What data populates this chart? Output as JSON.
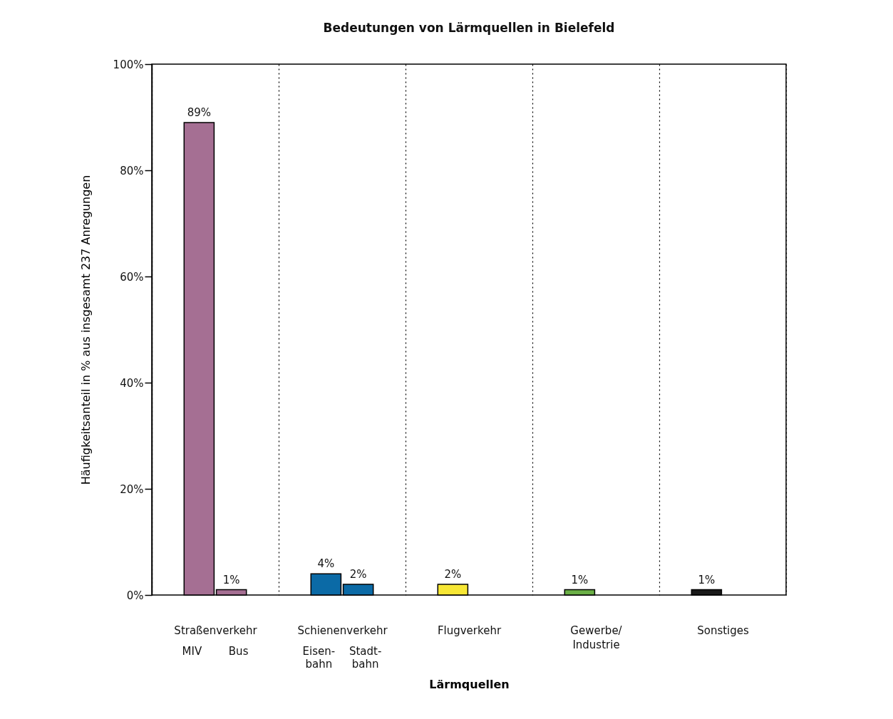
{
  "chart_data": {
    "type": "bar",
    "title": "Bedeutungen von Lärmquellen in Bielefeld",
    "xlabel": "Lärmquellen",
    "ylabel": "Häufigkeitsanteil in % aus insgesamt 237 Anregungen",
    "categories": [
      "Straßenverkehr",
      "Schienenverkehr",
      "Flugverkehr",
      "Gewerbe/\nIndustrie",
      "Sonstiges"
    ],
    "series": [
      {
        "values": [
          89,
          4,
          2,
          1,
          1
        ],
        "colors": [
          "#a56f93",
          "#0b6aa6",
          "#f7e735",
          "#6aaf46",
          "#1a1a1a"
        ],
        "value_labels": [
          "89%",
          "4%",
          "2%",
          "1%",
          "1%"
        ]
      },
      {
        "values": [
          1,
          2,
          null,
          null,
          null
        ],
        "colors": [
          "#a56f93",
          "#0b6aa6",
          null,
          null,
          null
        ],
        "value_labels": [
          "1%",
          "2%",
          null,
          null,
          null
        ]
      }
    ],
    "ylim": [
      0,
      100
    ],
    "yticks": [
      {
        "value": 0,
        "label": "0%"
      },
      {
        "value": 20,
        "label": "20%"
      },
      {
        "value": 40,
        "label": "40%"
      },
      {
        "value": 60,
        "label": "60%"
      },
      {
        "value": 80,
        "label": "80%"
      },
      {
        "value": 100,
        "label": "100%"
      }
    ],
    "grid": "x",
    "annotations": [
      "MIV",
      "Bus",
      "Eisen-\nbahn",
      "Stadt-\nbahn"
    ]
  }
}
